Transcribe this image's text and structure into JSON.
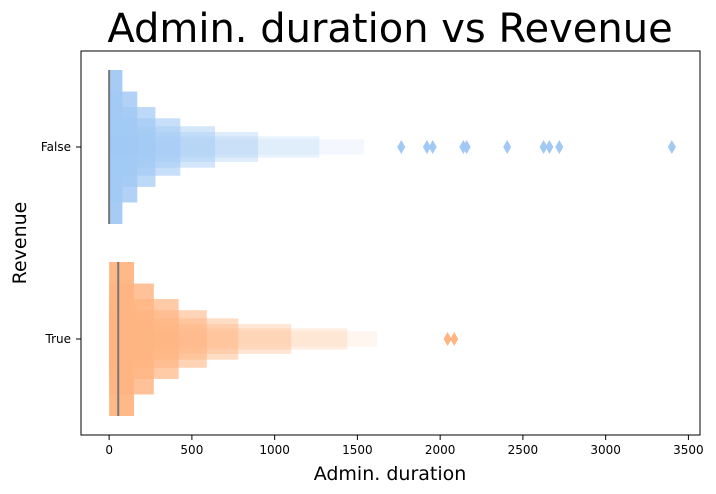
{
  "chart_data": {
    "type": "boxen",
    "title": "Admin. duration vs Revenue",
    "xlabel": "Admin. duration",
    "ylabel": "Revenue",
    "xlim": [
      -170,
      3570
    ],
    "xticks": [
      0,
      500,
      1000,
      1500,
      2000,
      2500,
      3000,
      3500
    ],
    "categories": [
      "False",
      "True"
    ],
    "series": [
      {
        "category": "False",
        "color": "#a1c9f4",
        "median": 0,
        "letter_values": [
          {
            "low": 0,
            "high": 80
          },
          {
            "low": 0,
            "high": 170
          },
          {
            "low": 0,
            "high": 280
          },
          {
            "low": 0,
            "high": 430
          },
          {
            "low": 0,
            "high": 640
          },
          {
            "low": 0,
            "high": 900
          },
          {
            "low": 0,
            "high": 1270
          },
          {
            "low": 0,
            "high": 1540
          }
        ],
        "outliers": [
          1765,
          1920,
          1955,
          2140,
          2160,
          2405,
          2625,
          2660,
          2720,
          3400
        ]
      },
      {
        "category": "True",
        "color": "#ffb482",
        "median": 55,
        "letter_values": [
          {
            "low": 0,
            "high": 150
          },
          {
            "low": 0,
            "high": 270
          },
          {
            "low": 0,
            "high": 420
          },
          {
            "low": 0,
            "high": 590
          },
          {
            "low": 0,
            "high": 780
          },
          {
            "low": 0,
            "high": 1100
          },
          {
            "low": 0,
            "high": 1440
          },
          {
            "low": 0,
            "high": 1620
          }
        ],
        "outliers": [
          2045,
          2085
        ]
      }
    ]
  }
}
